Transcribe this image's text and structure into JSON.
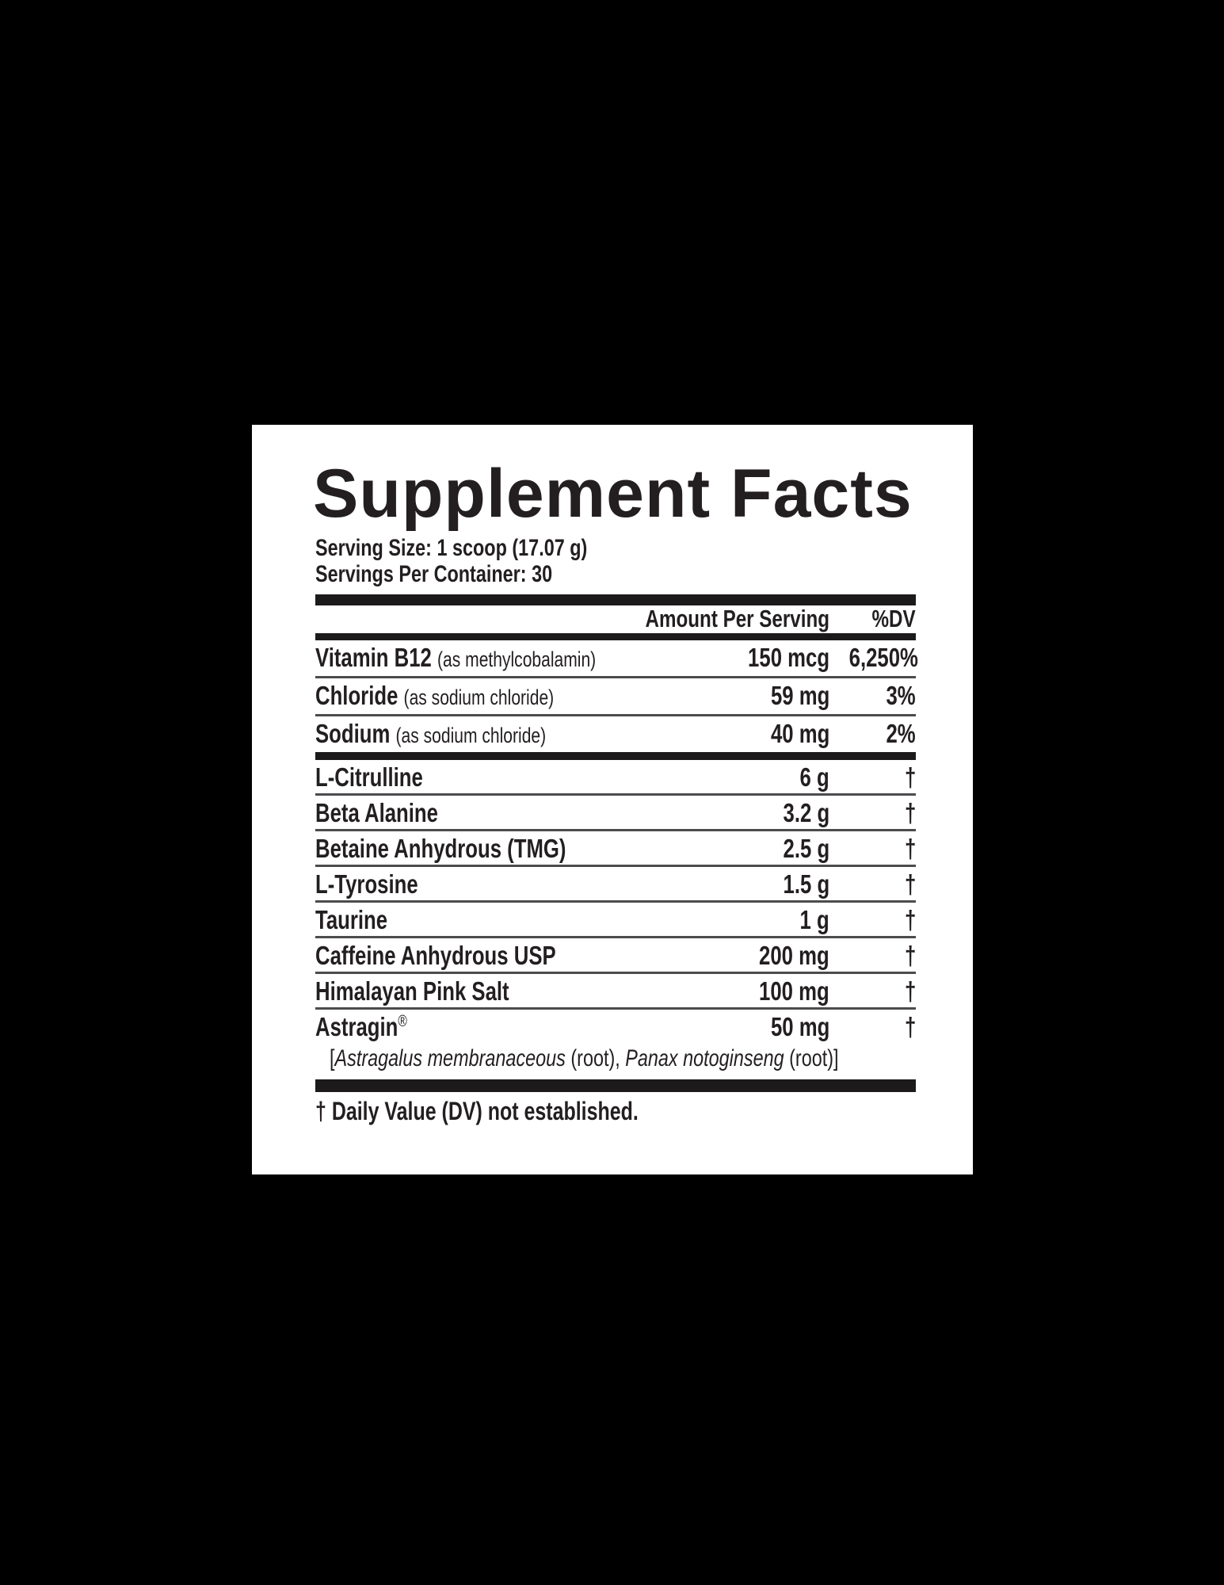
{
  "panel": {
    "title": "Supplement Facts",
    "serving_size": "Serving Size: 1 scoop (17.07 g)",
    "servings_per_container": "Servings Per Container: 30",
    "header": {
      "amount": "Amount Per Serving",
      "dv": "%DV"
    },
    "daily_rows": [
      {
        "name": "Vitamin B12",
        "sub": "(as methylcobalamin)",
        "amount": "150 mcg",
        "dv": "6,250%"
      },
      {
        "name": "Chloride",
        "sub": "(as sodium chloride)",
        "amount": "59 mg",
        "dv": "3%"
      },
      {
        "name": "Sodium",
        "sub": "(as sodium chloride)",
        "amount": "40 mg",
        "dv": "2%"
      }
    ],
    "other_rows": [
      {
        "name": "L-Citrulline",
        "amount": "6 g",
        "dv": "†"
      },
      {
        "name": "Beta Alanine",
        "amount": "3.2 g",
        "dv": "†"
      },
      {
        "name": "Betaine Anhydrous (TMG)",
        "amount": "2.5 g",
        "dv": "†"
      },
      {
        "name": "L-Tyrosine",
        "amount": "1.5 g",
        "dv": "†"
      },
      {
        "name": "Taurine",
        "amount": "1 g",
        "dv": "†"
      },
      {
        "name": "Caffeine Anhydrous USP",
        "amount": "200 mg",
        "dv": "†"
      },
      {
        "name": "Himalayan Pink Salt",
        "amount": "100 mg",
        "dv": "†"
      },
      {
        "name": "Astragin",
        "name_suffix": "®",
        "amount": "50 mg",
        "dv": "†"
      }
    ],
    "astragin_note": {
      "open": "[",
      "species1": "Astragalus membranaceous",
      "mid": " (root), ",
      "species2": "Panax notoginseng",
      "close": " (root)]"
    },
    "footnote": "† Daily Value (DV) not established.",
    "colors": {
      "background": "#000000",
      "panel": "#ffffff",
      "text": "#231f20",
      "bar": "#1d1a1c",
      "separator": "#4c4c4e"
    }
  }
}
